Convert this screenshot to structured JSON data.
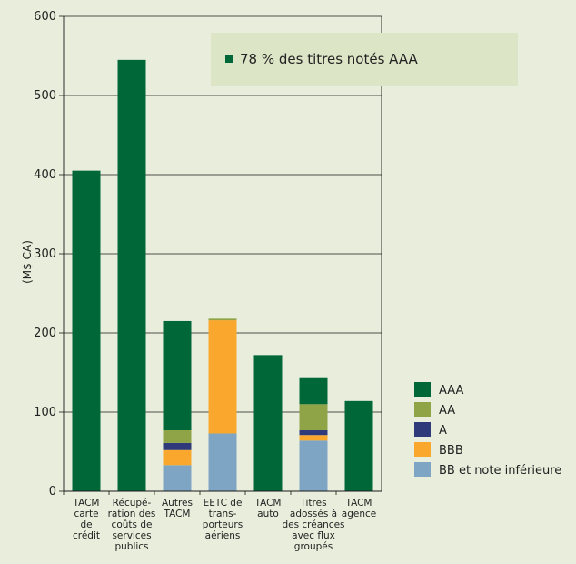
{
  "chart_data": {
    "type": "bar",
    "stacked": true,
    "ylabel": "(M$ CA)",
    "ylim": [
      0,
      600
    ],
    "yticks": [
      0,
      100,
      200,
      300,
      400,
      500,
      600
    ],
    "grid": true,
    "legend_position": "right",
    "annotation": "78 % des titres notés AAA",
    "categories": [
      [
        "TACM",
        "carte",
        "de",
        "crédit"
      ],
      [
        "Récupé-",
        "ration des",
        "coûts de",
        "services",
        "publics"
      ],
      [
        "Autres",
        "TACM"
      ],
      [
        "EETC de",
        "trans-",
        "porteurs",
        "aériens"
      ],
      [
        "TACM",
        "auto"
      ],
      [
        "Titres",
        "adossés à",
        "des créances",
        "avec flux",
        "groupés"
      ],
      [
        "TACM",
        "agence"
      ]
    ],
    "series": [
      {
        "name": "BB et note inférieure",
        "color": "#7ea6c4",
        "values": [
          0,
          0,
          33,
          73,
          0,
          64,
          0
        ]
      },
      {
        "name": "BBB",
        "color": "#f9a72d",
        "values": [
          0,
          0,
          19,
          143,
          0,
          7,
          0
        ]
      },
      {
        "name": "A",
        "color": "#2e3a7a",
        "values": [
          0,
          0,
          9,
          0,
          0,
          6,
          0
        ]
      },
      {
        "name": "AA",
        "color": "#8fa446",
        "values": [
          0,
          0,
          16,
          2,
          0,
          33,
          0
        ]
      },
      {
        "name": "AAA",
        "color": "#006838",
        "values": [
          405,
          545,
          138,
          0,
          172,
          34,
          114
        ]
      }
    ],
    "legend_order": [
      "AAA",
      "AA",
      "A",
      "BBB",
      "BB et note inférieure"
    ]
  }
}
